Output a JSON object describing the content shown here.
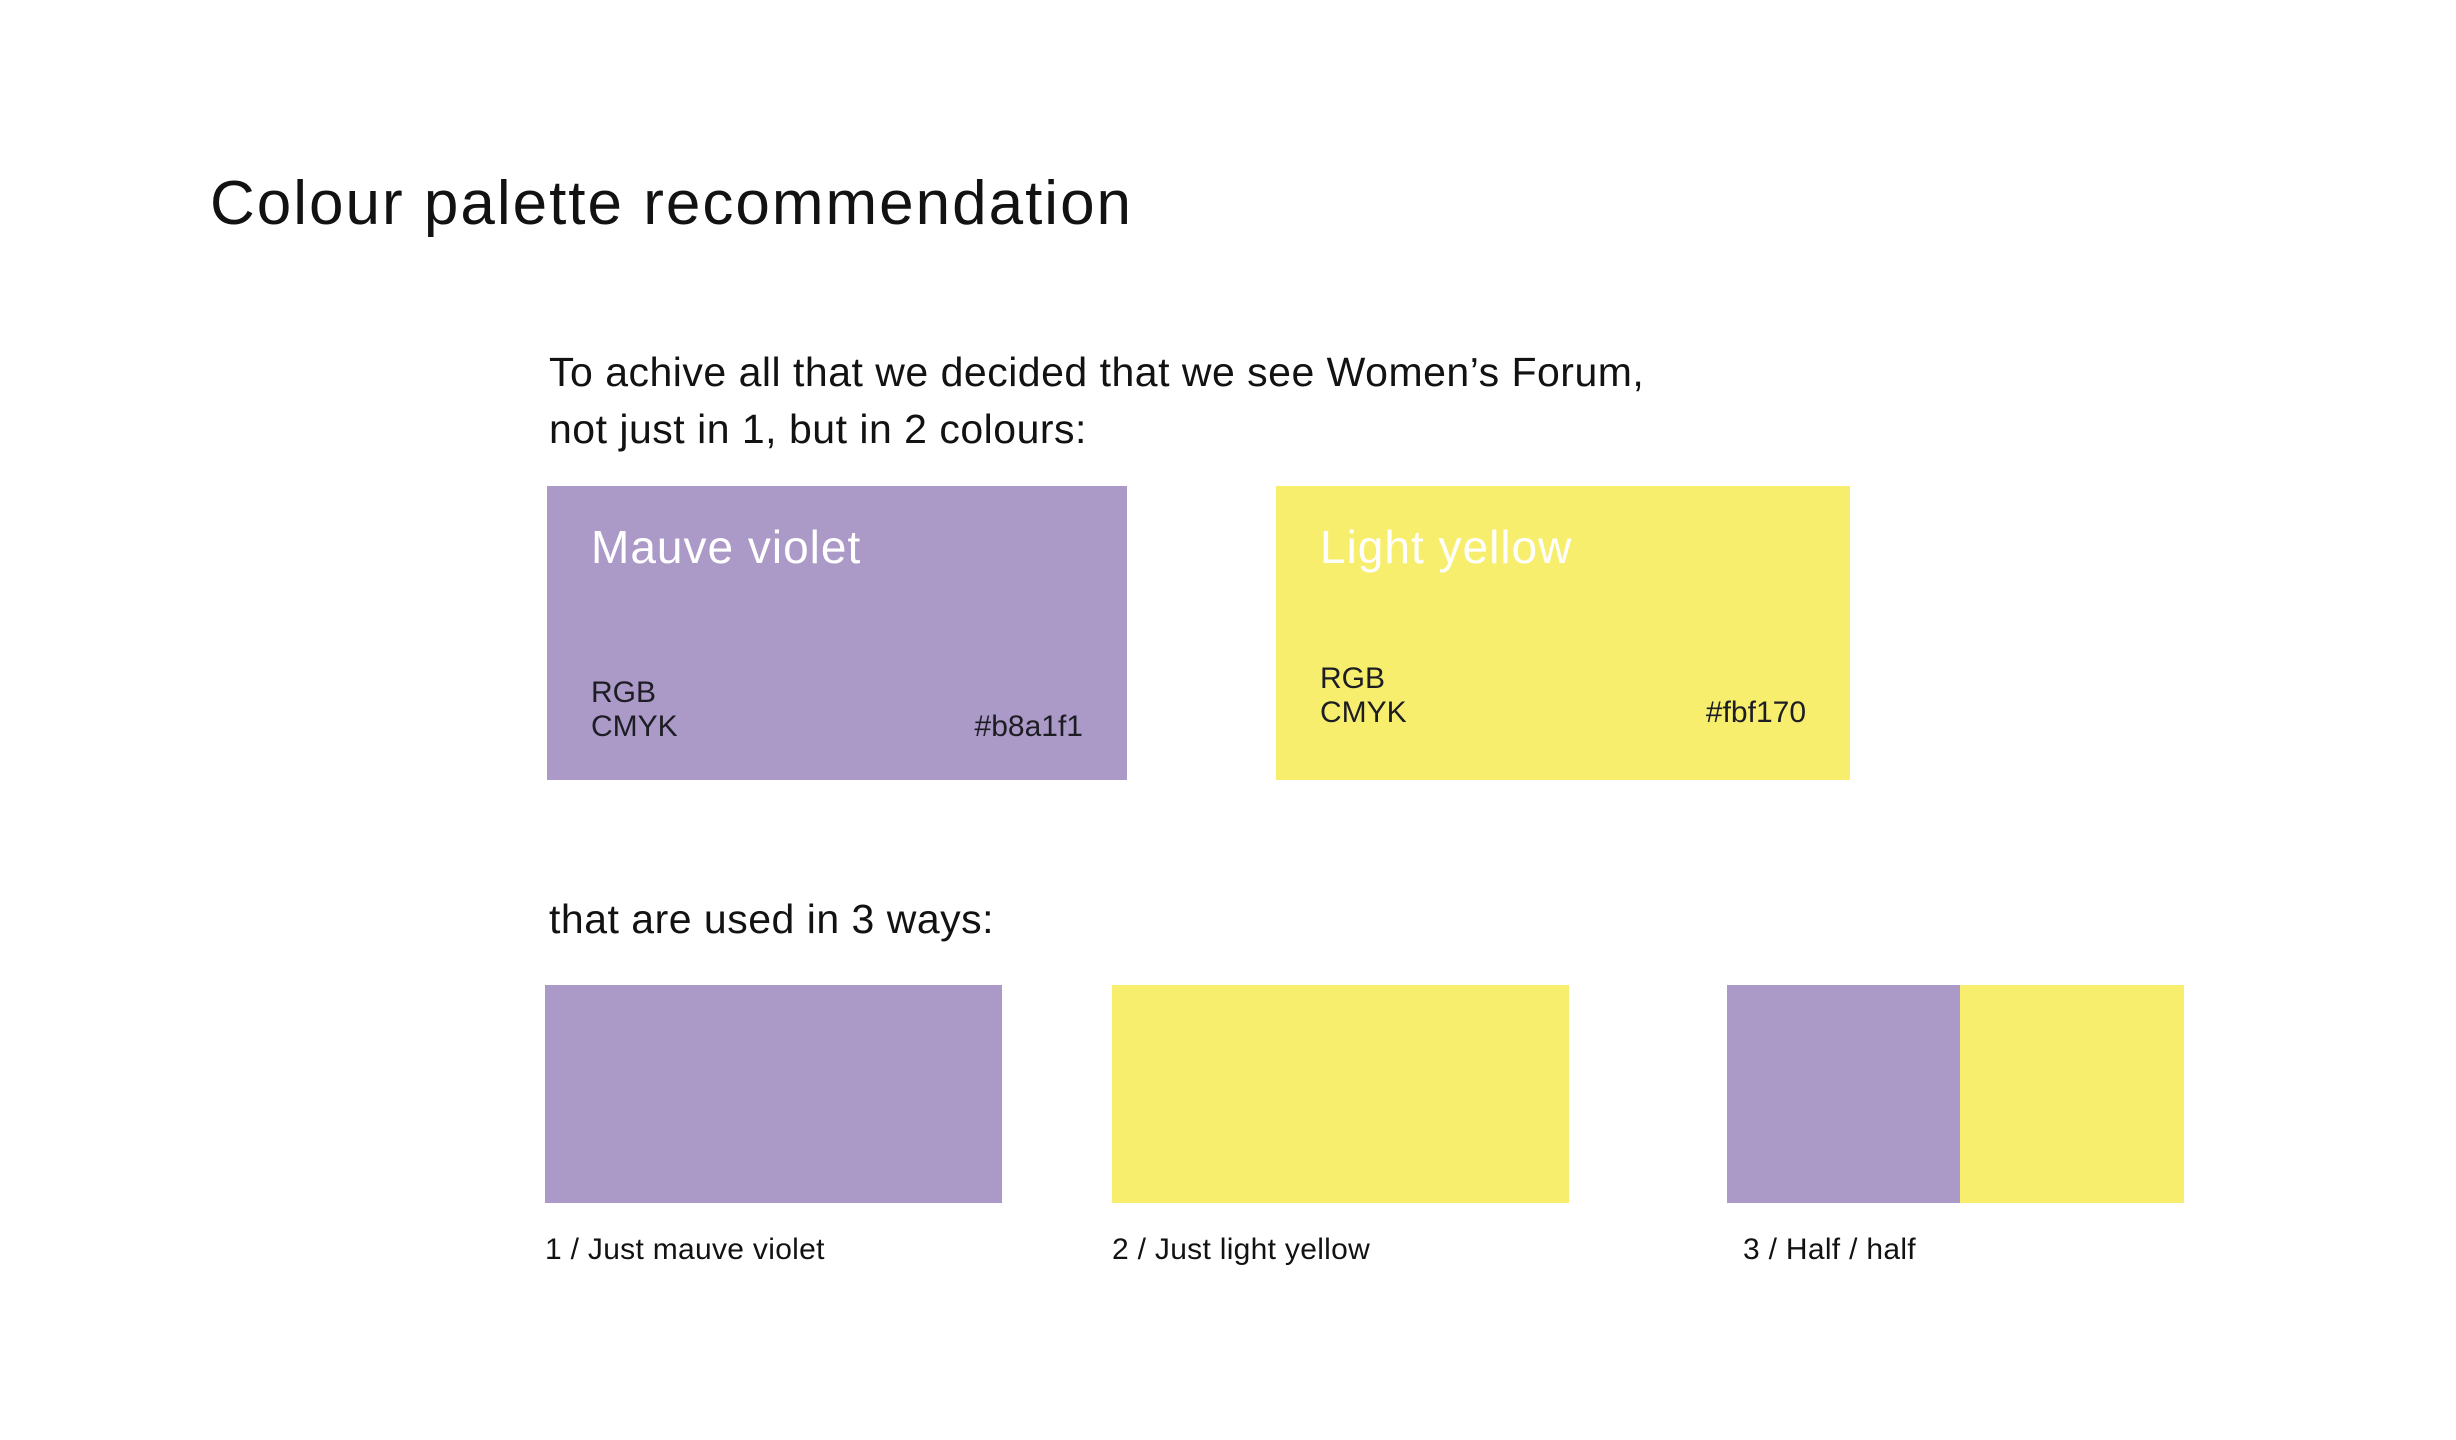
{
  "page": {
    "title": "Colour palette recommendation",
    "intro_line1": "To achive all that we decided that we see Women’s Forum,",
    "intro_line2": "not just in 1, but in 2 colours:",
    "ways_text": "that are used in 3 ways:"
  },
  "colors": {
    "mauve_fill": "#ab99c7",
    "yellow_fill": "#f7ee6d",
    "text_dark": "#121212",
    "text_on_swatch": "#1d1d24",
    "text_light": "#ffffff",
    "background": "#ffffff"
  },
  "swatches": [
    {
      "name": "Mauve violet",
      "rgb_label": "RGB",
      "cmyk_label": "CMYK",
      "hex": "#b8a1f1"
    },
    {
      "name": "Light yellow",
      "rgb_label": "RGB",
      "cmyk_label": "CMYK",
      "hex": "#fbf170"
    }
  ],
  "usage_examples": [
    {
      "label": "1 / Just mauve violet"
    },
    {
      "label": "2 / Just light yellow"
    },
    {
      "label": "3 / Half / half"
    }
  ]
}
